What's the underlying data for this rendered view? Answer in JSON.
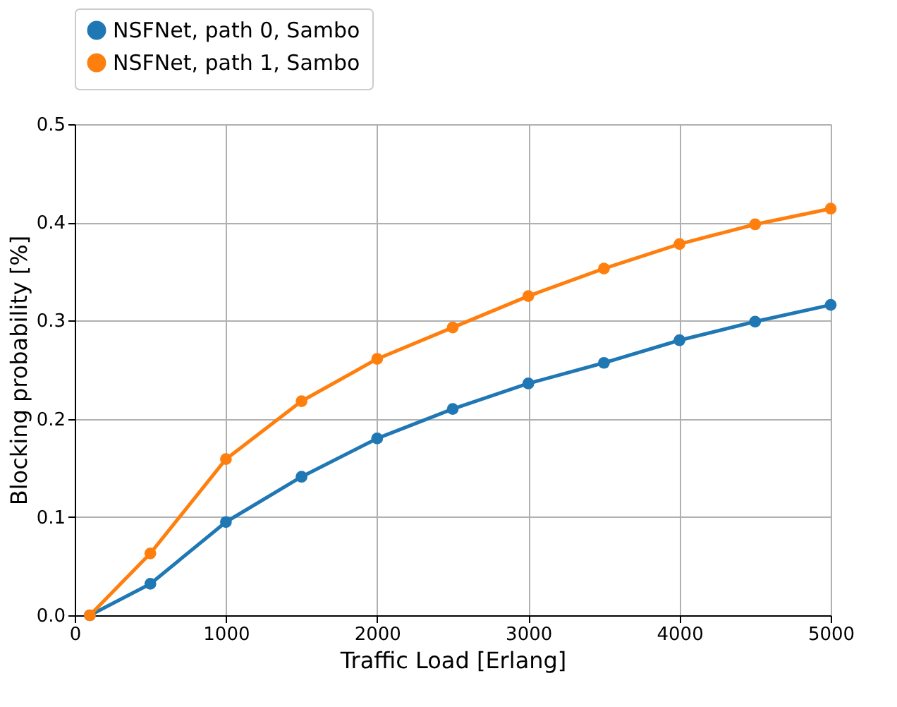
{
  "chart_data": {
    "type": "line",
    "xlabel": "Traffic Load [Erlang]",
    "ylabel": "Blocking probability [%]",
    "x": [
      100,
      500,
      1000,
      1500,
      2000,
      2500,
      3000,
      3500,
      4000,
      4500,
      5000
    ],
    "series": [
      {
        "name": "NSFNet, path 0, Sambo",
        "color": "#1f77b4",
        "values": [
          0.0,
          0.032,
          0.095,
          0.141,
          0.18,
          0.21,
          0.236,
          0.257,
          0.28,
          0.299,
          0.316
        ]
      },
      {
        "name": "NSFNet, path 1, Sambo",
        "color": "#ff7f0e",
        "values": [
          0.0,
          0.063,
          0.159,
          0.218,
          0.261,
          0.293,
          0.325,
          0.353,
          0.378,
          0.398,
          0.414
        ]
      }
    ],
    "xlim": [
      0,
      5000
    ],
    "xticks": [
      0,
      1000,
      2000,
      3000,
      4000,
      5000
    ],
    "ylim": [
      0,
      0.5
    ],
    "yticks": [
      {
        "value": 0,
        "label": "0.0"
      },
      0.1,
      0.2,
      0.3,
      0.4,
      0.5
    ],
    "grid": true,
    "legend": "top",
    "marker": "circle",
    "line_style": "solid"
  }
}
